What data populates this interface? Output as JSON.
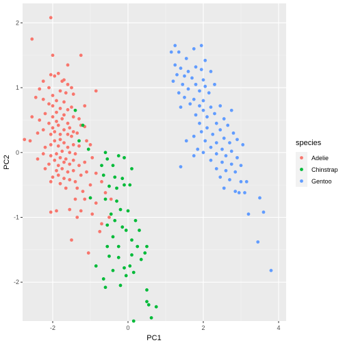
{
  "chart_data": {
    "type": "scatter",
    "xlabel": "PC1",
    "ylabel": "PC2",
    "xlim": [
      -2.8,
      4.2
    ],
    "ylim": [
      -2.6,
      2.3
    ],
    "x_ticks": [
      -2,
      0,
      2,
      4
    ],
    "y_ticks": [
      -2,
      -1,
      0,
      1,
      2
    ],
    "x_tick_labels": [
      "-2",
      "0",
      "2",
      "4"
    ],
    "y_tick_labels": [
      "-2",
      "-1",
      "0",
      "1",
      "2"
    ],
    "grid": true,
    "legend": {
      "title": "species",
      "position": "right"
    },
    "colors": {
      "Adelie": "#F8766D",
      "Chinstrap": "#00BA38",
      "Gentoo": "#619CFF"
    },
    "series": [
      {
        "name": "Adelie",
        "points": [
          [
            -2.05,
            2.08
          ],
          [
            -2.55,
            1.75
          ],
          [
            -2.0,
            1.5
          ],
          [
            -1.25,
            1.5
          ],
          [
            -1.6,
            1.35
          ],
          [
            -1.85,
            1.22
          ],
          [
            -1.95,
            1.18
          ],
          [
            -2.05,
            1.2
          ],
          [
            -1.7,
            1.12
          ],
          [
            -2.25,
            1.1
          ],
          [
            -1.75,
            1.1
          ],
          [
            -1.6,
            1.05
          ],
          [
            -1.5,
            1.0
          ],
          [
            -2.1,
            1.0
          ],
          [
            -2.35,
            0.98
          ],
          [
            -1.8,
            0.95
          ],
          [
            -1.65,
            0.92
          ],
          [
            -1.45,
            0.9
          ],
          [
            -0.85,
            0.95
          ],
          [
            -2.0,
            0.88
          ],
          [
            -2.45,
            0.85
          ],
          [
            -2.25,
            0.82
          ],
          [
            -1.9,
            0.8
          ],
          [
            -1.7,
            0.78
          ],
          [
            -2.1,
            0.75
          ],
          [
            -2.0,
            0.72
          ],
          [
            -1.5,
            0.7
          ],
          [
            -1.8,
            0.68
          ],
          [
            -1.15,
            0.72
          ],
          [
            -1.6,
            0.66
          ],
          [
            -1.9,
            0.62
          ],
          [
            -2.2,
            0.6
          ],
          [
            -1.7,
            0.58
          ],
          [
            -2.0,
            0.55
          ],
          [
            -1.75,
            0.52
          ],
          [
            -1.45,
            0.55
          ],
          [
            -1.3,
            0.52
          ],
          [
            -2.55,
            0.55
          ],
          [
            -2.35,
            0.5
          ],
          [
            -1.9,
            0.48
          ],
          [
            -2.1,
            0.45
          ],
          [
            -1.6,
            0.45
          ],
          [
            -1.85,
            0.42
          ],
          [
            -2.0,
            0.38
          ],
          [
            -1.55,
            0.38
          ],
          [
            -1.15,
            0.4
          ],
          [
            -1.25,
            0.42
          ],
          [
            -1.7,
            0.35
          ],
          [
            -1.95,
            0.32
          ],
          [
            -2.25,
            0.35
          ],
          [
            -1.45,
            0.32
          ],
          [
            -1.8,
            0.28
          ],
          [
            -2.05,
            0.28
          ],
          [
            -2.4,
            0.3
          ],
          [
            -1.6,
            0.28
          ],
          [
            -1.35,
            0.3
          ],
          [
            -1.5,
            0.25
          ],
          [
            -1.8,
            0.2
          ],
          [
            -1.95,
            0.18
          ],
          [
            -1.7,
            0.15
          ],
          [
            -1.45,
            0.12
          ],
          [
            -2.05,
            0.12
          ],
          [
            -1.85,
            0.1
          ],
          [
            -1.6,
            0.08
          ],
          [
            -2.2,
            0.08
          ],
          [
            -1.3,
            0.1
          ],
          [
            -1.1,
            0.18
          ],
          [
            -1.0,
            0.12
          ],
          [
            -2.6,
            0.18
          ],
          [
            -2.75,
            0.2
          ],
          [
            -1.75,
            0.02
          ],
          [
            -1.9,
            -0.02
          ],
          [
            -2.05,
            -0.05
          ],
          [
            -1.55,
            0.0
          ],
          [
            -1.4,
            -0.02
          ],
          [
            -2.25,
            -0.02
          ],
          [
            -1.8,
            -0.08
          ],
          [
            -1.65,
            -0.1
          ],
          [
            -1.95,
            -0.12
          ],
          [
            -1.45,
            -0.12
          ],
          [
            -2.4,
            -0.1
          ],
          [
            -1.7,
            -0.15
          ],
          [
            -1.55,
            -0.18
          ],
          [
            -1.85,
            -0.2
          ],
          [
            -2.1,
            -0.18
          ],
          [
            -1.3,
            -0.2
          ],
          [
            -1.15,
            -0.15
          ],
          [
            -0.95,
            -0.08
          ],
          [
            -1.75,
            -0.25
          ],
          [
            -1.9,
            -0.28
          ],
          [
            -2.2,
            -0.25
          ],
          [
            -1.6,
            -0.3
          ],
          [
            -1.45,
            -0.28
          ],
          [
            -1.85,
            -0.35
          ],
          [
            -1.7,
            -0.4
          ],
          [
            -2.0,
            -0.38
          ],
          [
            -1.25,
            -0.35
          ],
          [
            -1.1,
            -0.3
          ],
          [
            -1.55,
            -0.42
          ],
          [
            -1.4,
            -0.45
          ],
          [
            -1.8,
            -0.48
          ],
          [
            -2.05,
            -0.45
          ],
          [
            -0.85,
            -0.32
          ],
          [
            -1.65,
            -0.55
          ],
          [
            -1.35,
            -0.55
          ],
          [
            -1.0,
            -0.5
          ],
          [
            -1.2,
            -0.6
          ],
          [
            -0.7,
            -0.45
          ],
          [
            -1.15,
            -0.72
          ],
          [
            -0.6,
            -0.62
          ],
          [
            -1.4,
            -0.72
          ],
          [
            -0.85,
            -0.78
          ],
          [
            -1.9,
            -0.9
          ],
          [
            -1.55,
            -0.88
          ],
          [
            -2.05,
            -0.92
          ],
          [
            -1.25,
            -0.9
          ],
          [
            -1.35,
            -1.0
          ],
          [
            -0.95,
            -0.95
          ],
          [
            -1.5,
            -1.35
          ],
          [
            -0.75,
            -1.22
          ],
          [
            -1.05,
            -1.55
          ],
          [
            -0.5,
            -1.0
          ],
          [
            -0.45,
            -0.72
          ],
          [
            -0.7,
            -1.1
          ]
        ]
      },
      {
        "name": "Chinstrap",
        "points": [
          [
            -1.4,
            0.65
          ],
          [
            -1.2,
            0.42
          ],
          [
            -1.3,
            0.18
          ],
          [
            -1.05,
            0.05
          ],
          [
            -0.6,
            0.0
          ],
          [
            -0.55,
            -0.1
          ],
          [
            -0.4,
            -0.2
          ],
          [
            -0.25,
            -0.05
          ],
          [
            -0.1,
            -0.08
          ],
          [
            -0.7,
            -0.2
          ],
          [
            -0.35,
            -0.38
          ],
          [
            -0.65,
            -0.35
          ],
          [
            -0.15,
            -0.4
          ],
          [
            0.1,
            -0.25
          ],
          [
            -0.5,
            -0.52
          ],
          [
            -0.3,
            -0.55
          ],
          [
            -0.1,
            -0.5
          ],
          [
            0.05,
            -0.5
          ],
          [
            -1.0,
            -0.7
          ],
          [
            -0.6,
            -0.72
          ],
          [
            -0.3,
            -0.75
          ],
          [
            -0.2,
            -0.88
          ],
          [
            -0.45,
            -0.95
          ],
          [
            0.0,
            -0.9
          ],
          [
            -0.35,
            -1.05
          ],
          [
            -0.55,
            -1.12
          ],
          [
            -0.15,
            -1.15
          ],
          [
            0.2,
            -1.05
          ],
          [
            -0.05,
            -1.2
          ],
          [
            0.3,
            -1.2
          ],
          [
            -0.4,
            -1.3
          ],
          [
            0.1,
            -1.35
          ],
          [
            -0.25,
            -1.45
          ],
          [
            -0.55,
            -1.45
          ],
          [
            0.25,
            -1.45
          ],
          [
            0.5,
            -1.45
          ],
          [
            0.45,
            -1.55
          ],
          [
            0.1,
            -1.58
          ],
          [
            0.35,
            -1.65
          ],
          [
            -0.5,
            -1.6
          ],
          [
            -0.25,
            -1.62
          ],
          [
            0.05,
            -1.75
          ],
          [
            -0.1,
            -1.78
          ],
          [
            -0.05,
            -1.9
          ],
          [
            0.15,
            -1.85
          ],
          [
            -0.85,
            -1.75
          ],
          [
            -0.4,
            -1.82
          ],
          [
            -0.65,
            -1.95
          ],
          [
            -0.6,
            -2.08
          ],
          [
            -0.2,
            -2.05
          ],
          [
            0.5,
            -2.12
          ],
          [
            0.55,
            -2.35
          ],
          [
            0.75,
            -2.38
          ],
          [
            0.62,
            -2.55
          ],
          [
            0.15,
            -2.6
          ],
          [
            0.5,
            -2.3
          ]
        ]
      },
      {
        "name": "Gentoo",
        "points": [
          [
            1.25,
            1.65
          ],
          [
            1.35,
            1.55
          ],
          [
            1.75,
            1.6
          ],
          [
            1.95,
            1.65
          ],
          [
            1.15,
            1.55
          ],
          [
            1.55,
            1.45
          ],
          [
            2.05,
            1.42
          ],
          [
            1.25,
            1.35
          ],
          [
            1.4,
            1.3
          ],
          [
            1.8,
            1.32
          ],
          [
            1.6,
            1.25
          ],
          [
            1.95,
            1.28
          ],
          [
            2.2,
            1.25
          ],
          [
            1.3,
            1.2
          ],
          [
            1.5,
            1.18
          ],
          [
            1.7,
            1.15
          ],
          [
            2.0,
            1.12
          ],
          [
            1.2,
            1.1
          ],
          [
            1.45,
            1.05
          ],
          [
            1.8,
            1.05
          ],
          [
            2.05,
            1.02
          ],
          [
            2.3,
            1.05
          ],
          [
            1.6,
            0.98
          ],
          [
            1.9,
            0.95
          ],
          [
            2.15,
            0.92
          ],
          [
            1.35,
            0.92
          ],
          [
            1.5,
            0.85
          ],
          [
            1.75,
            0.82
          ],
          [
            2.0,
            0.8
          ],
          [
            1.65,
            0.75
          ],
          [
            1.9,
            0.72
          ],
          [
            2.2,
            0.7
          ],
          [
            2.45,
            0.72
          ],
          [
            1.4,
            0.7
          ],
          [
            2.0,
            0.65
          ],
          [
            2.3,
            0.6
          ],
          [
            2.75,
            0.65
          ],
          [
            1.8,
            0.58
          ],
          [
            2.1,
            0.55
          ],
          [
            2.55,
            0.52
          ],
          [
            2.35,
            0.45
          ],
          [
            1.9,
            0.45
          ],
          [
            2.65,
            0.42
          ],
          [
            2.1,
            0.38
          ],
          [
            2.45,
            0.35
          ],
          [
            1.95,
            0.32
          ],
          [
            2.8,
            0.3
          ],
          [
            2.25,
            0.28
          ],
          [
            1.75,
            0.25
          ],
          [
            2.55,
            0.22
          ],
          [
            2.05,
            0.18
          ],
          [
            2.35,
            0.15
          ],
          [
            2.7,
            0.15
          ],
          [
            1.55,
            0.18
          ],
          [
            2.9,
            0.2
          ],
          [
            2.2,
            0.08
          ],
          [
            2.5,
            0.05
          ],
          [
            1.85,
            0.05
          ],
          [
            2.75,
            0.02
          ],
          [
            3.05,
            0.12
          ],
          [
            2.0,
            0.0
          ],
          [
            2.35,
            -0.02
          ],
          [
            2.6,
            -0.05
          ],
          [
            1.75,
            -0.05
          ],
          [
            2.9,
            -0.08
          ],
          [
            2.2,
            -0.12
          ],
          [
            2.5,
            -0.15
          ],
          [
            2.75,
            -0.18
          ],
          [
            3.0,
            -0.2
          ],
          [
            2.35,
            -0.25
          ],
          [
            2.6,
            -0.28
          ],
          [
            2.85,
            -0.3
          ],
          [
            1.4,
            -0.22
          ],
          [
            2.45,
            -0.38
          ],
          [
            2.7,
            -0.42
          ],
          [
            3.0,
            -0.45
          ],
          [
            2.55,
            -0.55
          ],
          [
            2.85,
            -0.6
          ],
          [
            2.95,
            -0.62
          ],
          [
            3.1,
            -0.62
          ],
          [
            3.15,
            -0.45
          ],
          [
            3.5,
            -0.7
          ],
          [
            3.6,
            -0.92
          ],
          [
            3.2,
            -0.95
          ],
          [
            3.45,
            -1.38
          ],
          [
            3.8,
            -1.82
          ]
        ]
      }
    ]
  }
}
